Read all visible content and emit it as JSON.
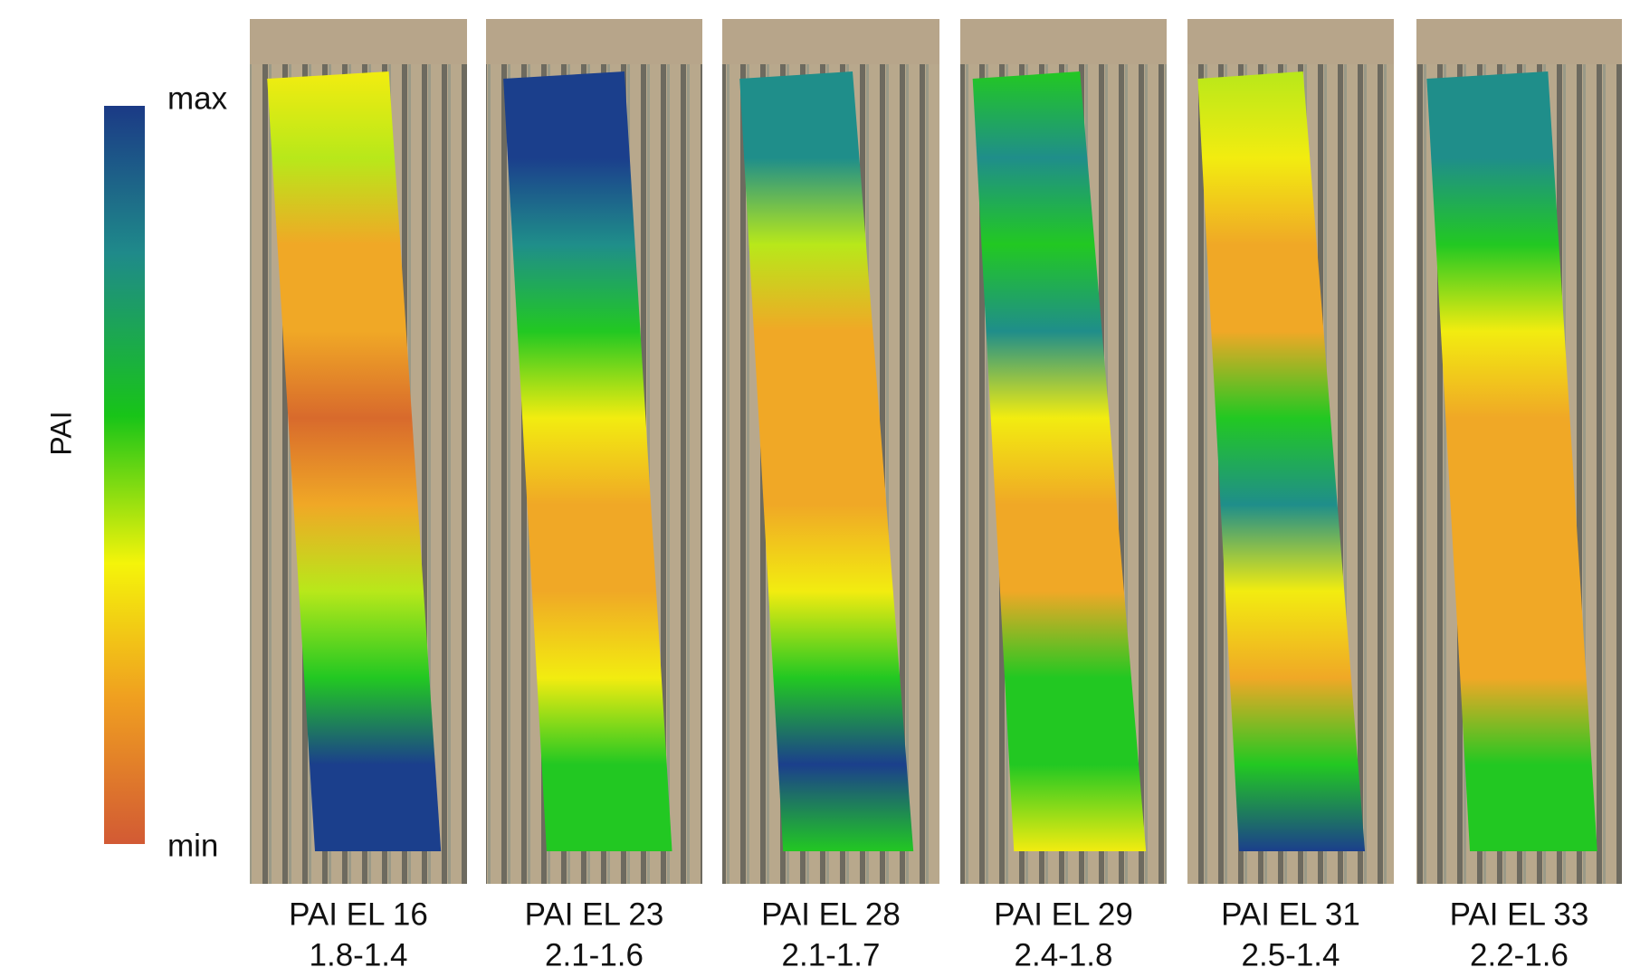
{
  "colorbar": {
    "axis_label": "PAI",
    "max_label": "max",
    "min_label": "min"
  },
  "panels": [
    {
      "title": "PAI EL 16",
      "range": "1.8-1.4"
    },
    {
      "title": "PAI EL 23",
      "range": "2.1-1.6"
    },
    {
      "title": "PAI EL 28",
      "range": "2.1-1.7"
    },
    {
      "title": "PAI EL 29",
      "range": "2.4-1.8"
    },
    {
      "title": "PAI EL 31",
      "range": "2.5-1.4"
    },
    {
      "title": "PAI EL 33",
      "range": "2.2-1.6"
    }
  ]
}
